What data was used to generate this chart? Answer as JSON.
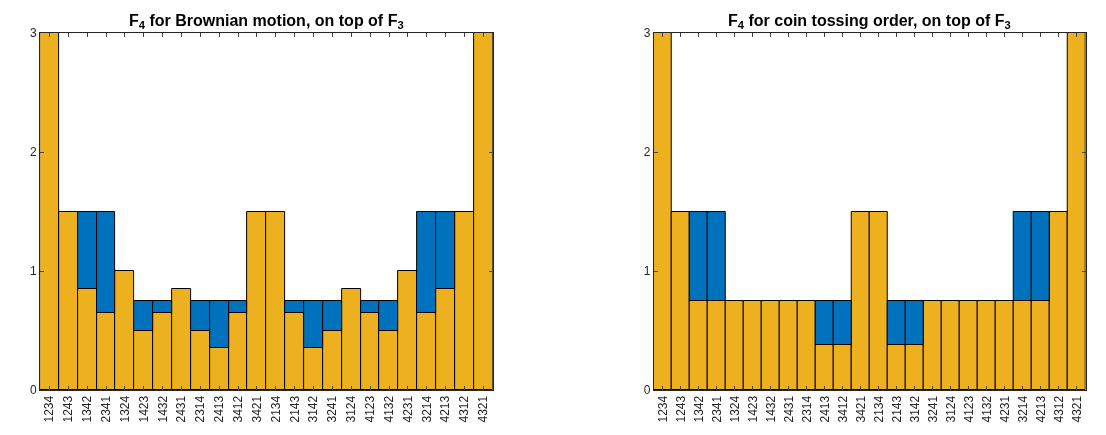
{
  "chart_data": [
    {
      "type": "bar",
      "title": "F$_{4}$ for Brownian motion, on top of F$_{3}$",
      "categories": [
        "1234",
        "1243",
        "1342",
        "2341",
        "1324",
        "1423",
        "1432",
        "2431",
        "2314",
        "2413",
        "3412",
        "3421",
        "2134",
        "2143",
        "3142",
        "3241",
        "3124",
        "4123",
        "4132",
        "4231",
        "3214",
        "4213",
        "4312",
        "4321"
      ],
      "ylim": [
        0,
        3
      ],
      "yticks": [
        0,
        1,
        2,
        3
      ],
      "stacked": true,
      "series": [
        {
          "color": "#edb120",
          "values": [
            3,
            1.5,
            0.85,
            0.65,
            1,
            0.5,
            0.65,
            0.85,
            0.5,
            0.35,
            0.65,
            1.5,
            1.5,
            0.65,
            0.35,
            0.5,
            0.85,
            0.65,
            0.5,
            1,
            0.65,
            0.85,
            1.5,
            3
          ]
        },
        {
          "color": "#0072bd",
          "values": [
            null,
            null,
            0.65,
            0.85,
            null,
            0.25,
            0.1,
            null,
            0.25,
            0.4,
            0.1,
            null,
            null,
            0.1,
            0.4,
            0.25,
            null,
            0.1,
            0.25,
            null,
            0.85,
            0.65,
            null,
            null
          ]
        }
      ]
    },
    {
      "type": "bar",
      "title": "F$_{4}$ for coin tossing order, on top of F$_{3}$",
      "categories": [
        "1234",
        "1243",
        "1342",
        "2341",
        "1324",
        "1423",
        "1432",
        "2431",
        "2314",
        "2413",
        "3412",
        "3421",
        "2134",
        "2143",
        "3142",
        "3241",
        "3124",
        "4123",
        "4132",
        "4231",
        "3214",
        "4213",
        "4312",
        "4321"
      ],
      "ylim": [
        0,
        3
      ],
      "yticks": [
        0,
        1,
        2,
        3
      ],
      "stacked": true,
      "series": [
        {
          "color": "#edb120",
          "values": [
            3,
            1.5,
            0.75,
            0.75,
            0.75,
            0.75,
            0.75,
            0.75,
            0.75,
            0.38,
            0.38,
            1.5,
            1.5,
            0.38,
            0.38,
            0.75,
            0.75,
            0.75,
            0.75,
            0.75,
            0.75,
            0.75,
            1.5,
            3
          ]
        },
        {
          "color": "#0072bd",
          "values": [
            null,
            null,
            0.75,
            0.75,
            null,
            null,
            null,
            null,
            null,
            0.37,
            0.37,
            null,
            null,
            0.37,
            0.37,
            null,
            null,
            null,
            null,
            null,
            0.75,
            0.75,
            null,
            null
          ]
        }
      ]
    }
  ]
}
